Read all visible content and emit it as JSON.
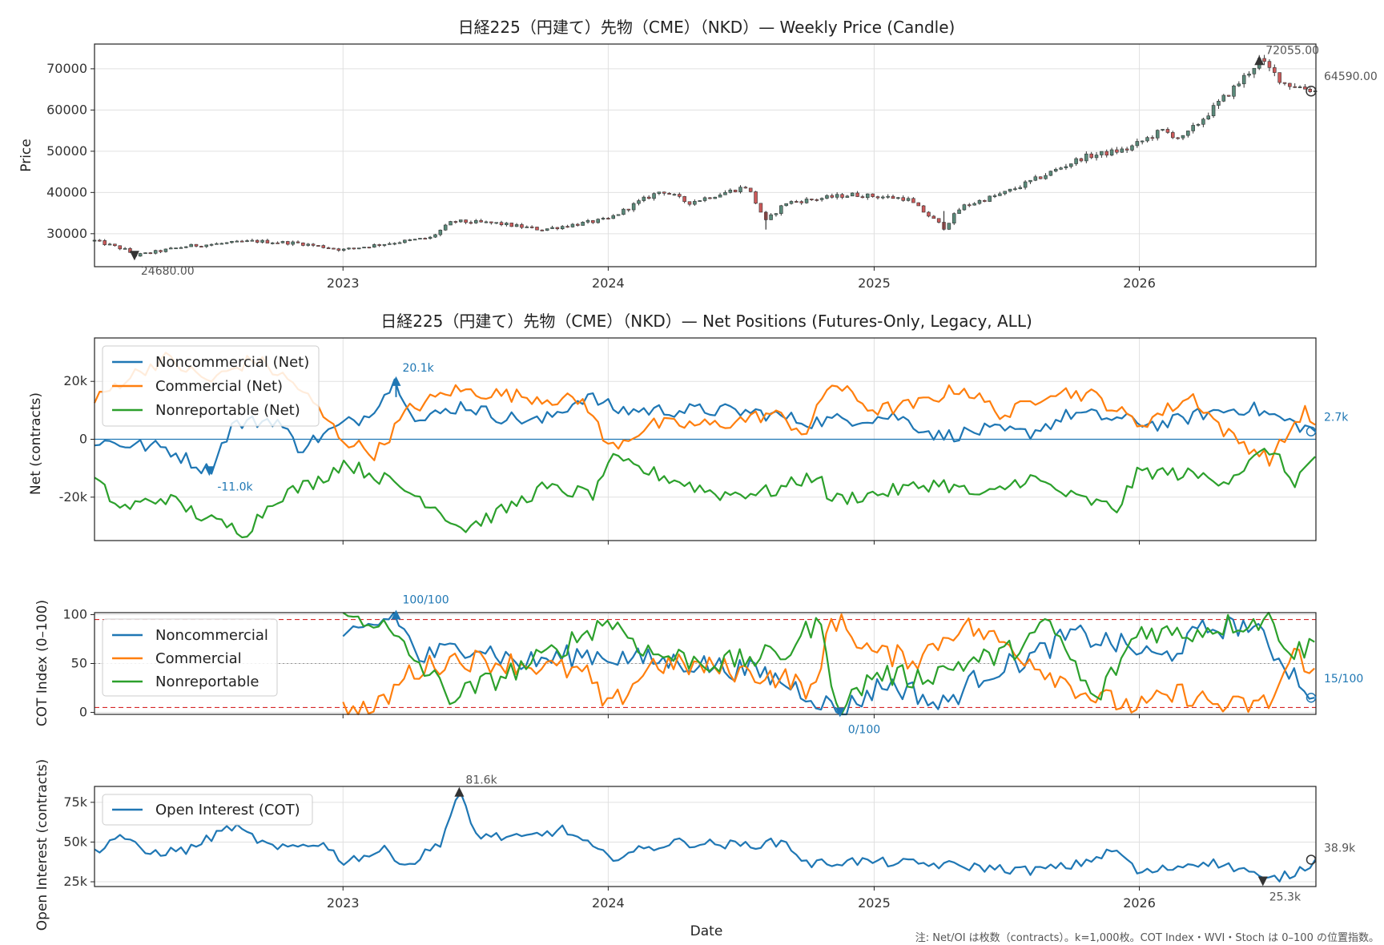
{
  "colors": {
    "noncommercial": "#1f77b4",
    "commercial": "#ff7f0e",
    "nonreportable": "#2ca02c",
    "oi": "#1f77b4",
    "up": "#5a8a7a",
    "down": "#cc5a5a",
    "threshold": "#d62728",
    "mark": "#333333"
  },
  "x_ticks": [
    "2023",
    "2024",
    "2025",
    "2026"
  ],
  "x_axis_label": "Date",
  "note": "注: Net/OI は枚数（contracts）。k=1,000枚。COT Index・WVI・Stoch は 0–100 の位置指数。",
  "chart_data": [
    {
      "type": "candlestick",
      "title": "日経225（円建て）先物（CME）（NKD）— Weekly Price (Candle)",
      "ylabel": "Price",
      "ylim": [
        22000,
        76000
      ],
      "yticks": [
        "30000",
        "40000",
        "50000",
        "60000",
        "70000"
      ],
      "x_range": [
        "2022-01-24",
        "2026-09-01"
      ],
      "anchors": [
        [
          "2022-01-24",
          28300
        ],
        [
          "2022-03-10",
          26000
        ],
        [
          "2022-03-20",
          24680
        ],
        [
          "2022-06-01",
          27000
        ],
        [
          "2022-09-01",
          28200
        ],
        [
          "2022-11-01",
          27700
        ],
        [
          "2023-01-01",
          26100
        ],
        [
          "2023-03-01",
          27600
        ],
        [
          "2023-05-01",
          29000
        ],
        [
          "2023-06-01",
          33000
        ],
        [
          "2023-08-01",
          32500
        ],
        [
          "2023-10-01",
          31000
        ],
        [
          "2024-01-01",
          33500
        ],
        [
          "2024-02-15",
          38000
        ],
        [
          "2024-03-15",
          40500
        ],
        [
          "2024-04-20",
          37500
        ],
        [
          "2024-07-10",
          41500
        ],
        [
          "2024-08-05",
          33000
        ],
        [
          "2024-09-01",
          37500
        ],
        [
          "2024-12-01",
          39500
        ],
        [
          "2025-02-15",
          38500
        ],
        [
          "2025-04-07",
          31500
        ],
        [
          "2025-05-01",
          36500
        ],
        [
          "2025-07-01",
          40000
        ],
        [
          "2025-08-15",
          43500
        ],
        [
          "2025-10-15",
          48500
        ],
        [
          "2025-12-15",
          50500
        ],
        [
          "2026-02-01",
          55000
        ],
        [
          "2026-03-01",
          53000
        ],
        [
          "2026-05-15",
          66000
        ],
        [
          "2026-06-15",
          72055
        ],
        [
          "2026-07-20",
          66500
        ],
        [
          "2026-09-01",
          64590
        ]
      ],
      "max_label": "72055.00",
      "min_label": "24680.00",
      "last_label": "64590.00"
    },
    {
      "type": "line",
      "title": "日経225（円建て）先物（CME）（NKD）— Net Positions (Futures-Only, Legacy, ALL)",
      "ylabel": "Net (contracts)",
      "ylim": [
        -35000,
        35000
      ],
      "yticks": [
        "-20k",
        "0",
        "20k"
      ],
      "series": [
        {
          "name": "Noncommercial (Net)",
          "anchors": [
            [
              "2022-01-24",
              -500
            ],
            [
              "2022-03-01",
              -1500
            ],
            [
              "2022-05-01",
              -3000
            ],
            [
              "2022-07-01",
              -11000
            ],
            [
              "2022-08-01",
              5000
            ],
            [
              "2022-10-01",
              7000
            ],
            [
              "2022-11-01",
              -3000
            ],
            [
              "2023-01-01",
              5000
            ],
            [
              "2023-02-01",
              8000
            ],
            [
              "2023-03-15",
              20100
            ],
            [
              "2023-04-15",
              6000
            ],
            [
              "2023-06-15",
              12000
            ],
            [
              "2023-08-01",
              8000
            ],
            [
              "2023-10-01",
              6000
            ],
            [
              "2023-12-01",
              15000
            ],
            [
              "2024-01-15",
              10000
            ],
            [
              "2024-04-01",
              10000
            ],
            [
              "2024-06-01",
              10000
            ],
            [
              "2024-08-01",
              9000
            ],
            [
              "2024-10-01",
              6000
            ],
            [
              "2024-12-01",
              7000
            ],
            [
              "2025-02-01",
              8000
            ],
            [
              "2025-04-01",
              1000
            ],
            [
              "2025-06-01",
              3000
            ],
            [
              "2025-08-01",
              2000
            ],
            [
              "2025-10-01",
              9000
            ],
            [
              "2025-12-01",
              7000
            ],
            [
              "2026-02-01",
              5000
            ],
            [
              "2026-04-01",
              9000
            ],
            [
              "2026-06-01",
              11000
            ],
            [
              "2026-09-01",
              2700
            ]
          ]
        },
        {
          "name": "Commercial (Net)",
          "anchors": [
            [
              "2022-01-24",
              13000
            ],
            [
              "2022-03-01",
              20000
            ],
            [
              "2022-05-01",
              28000
            ],
            [
              "2022-07-01",
              20000
            ],
            [
              "2022-09-01",
              28000
            ],
            [
              "2022-11-01",
              18000
            ],
            [
              "2023-01-01",
              0
            ],
            [
              "2023-02-15",
              -5000
            ],
            [
              "2023-04-01",
              10000
            ],
            [
              "2023-06-01",
              17000
            ],
            [
              "2023-09-01",
              15000
            ],
            [
              "2023-12-01",
              13000
            ],
            [
              "2024-01-01",
              -3000
            ],
            [
              "2024-03-01",
              5000
            ],
            [
              "2024-06-01",
              5000
            ],
            [
              "2024-08-15",
              9000
            ],
            [
              "2024-10-01",
              2000
            ],
            [
              "2024-11-01",
              20000
            ],
            [
              "2025-01-01",
              10000
            ],
            [
              "2025-03-01",
              12000
            ],
            [
              "2025-05-01",
              18000
            ],
            [
              "2025-07-01",
              8000
            ],
            [
              "2025-09-01",
              17000
            ],
            [
              "2025-11-01",
              15000
            ],
            [
              "2026-01-01",
              5000
            ],
            [
              "2026-03-15",
              15000
            ],
            [
              "2026-05-01",
              2000
            ],
            [
              "2026-07-01",
              -7000
            ],
            [
              "2026-08-15",
              10000
            ],
            [
              "2026-09-01",
              5000
            ]
          ]
        },
        {
          "name": "Nonreportable (Net)",
          "anchors": [
            [
              "2022-01-24",
              -14000
            ],
            [
              "2022-03-01",
              -24000
            ],
            [
              "2022-05-01",
              -20000
            ],
            [
              "2022-07-01",
              -28000
            ],
            [
              "2022-08-20",
              -32000
            ],
            [
              "2022-10-01",
              -20000
            ],
            [
              "2022-12-01",
              -14000
            ],
            [
              "2023-01-01",
              -8000
            ],
            [
              "2023-03-01",
              -14000
            ],
            [
              "2023-05-01",
              -22000
            ],
            [
              "2023-06-15",
              -31000
            ],
            [
              "2023-08-15",
              -24000
            ],
            [
              "2023-10-01",
              -17000
            ],
            [
              "2023-12-15",
              -19000
            ],
            [
              "2024-01-01",
              -7000
            ],
            [
              "2024-04-01",
              -14000
            ],
            [
              "2024-06-01",
              -19000
            ],
            [
              "2024-08-15",
              -18000
            ],
            [
              "2024-10-15",
              -12000
            ],
            [
              "2024-11-01",
              -21000
            ],
            [
              "2025-01-01",
              -19000
            ],
            [
              "2025-04-01",
              -15000
            ],
            [
              "2025-06-01",
              -20000
            ],
            [
              "2025-08-01",
              -13000
            ],
            [
              "2025-10-01",
              -20000
            ],
            [
              "2025-12-01",
              -24000
            ],
            [
              "2026-01-01",
              -11000
            ],
            [
              "2026-03-01",
              -12000
            ],
            [
              "2026-05-01",
              -14000
            ],
            [
              "2026-07-01",
              -3000
            ],
            [
              "2026-08-01",
              -15000
            ],
            [
              "2026-09-01",
              -6000
            ]
          ]
        }
      ],
      "max_label": "20.1k",
      "min_label": "-11.0k",
      "last_label": "2.7k"
    },
    {
      "type": "line",
      "title": "",
      "ylabel": "COT Index (0–100)",
      "ylim": [
        -2,
        102
      ],
      "yticks": [
        "0",
        "50",
        "100"
      ],
      "thresholds": [
        95,
        5
      ],
      "midline": 50,
      "series": [
        {
          "name": "Noncommercial",
          "anchors": [
            [
              "2023-01-01",
              70
            ],
            [
              "2023-02-15",
              90
            ],
            [
              "2023-03-15",
              100
            ],
            [
              "2023-04-15",
              55
            ],
            [
              "2023-07-01",
              70
            ],
            [
              "2023-09-01",
              50
            ],
            [
              "2023-12-01",
              60
            ],
            [
              "2024-02-01",
              55
            ],
            [
              "2024-05-01",
              50
            ],
            [
              "2024-08-01",
              40
            ],
            [
              "2024-10-01",
              20
            ],
            [
              "2024-11-15",
              0
            ],
            [
              "2025-01-15",
              30
            ],
            [
              "2025-03-01",
              20
            ],
            [
              "2025-04-01",
              5
            ],
            [
              "2025-06-01",
              40
            ],
            [
              "2025-08-01",
              55
            ],
            [
              "2025-10-01",
              80
            ],
            [
              "2025-12-01",
              70
            ],
            [
              "2026-02-01",
              55
            ],
            [
              "2026-04-01",
              85
            ],
            [
              "2026-06-01",
              90
            ],
            [
              "2026-08-01",
              40
            ],
            [
              "2026-09-01",
              15
            ]
          ]
        },
        {
          "name": "Commercial",
          "anchors": [
            [
              "2023-01-01",
              3
            ],
            [
              "2023-02-15",
              2
            ],
            [
              "2023-04-01",
              40
            ],
            [
              "2023-06-01",
              55
            ],
            [
              "2023-09-01",
              50
            ],
            [
              "2023-12-01",
              40
            ],
            [
              "2024-01-01",
              2
            ],
            [
              "2024-03-01",
              50
            ],
            [
              "2024-06-01",
              45
            ],
            [
              "2024-09-01",
              35
            ],
            [
              "2024-10-15",
              20
            ],
            [
              "2024-11-01",
              100
            ],
            [
              "2025-01-01",
              60
            ],
            [
              "2025-03-01",
              55
            ],
            [
              "2025-05-01",
              90
            ],
            [
              "2025-07-01",
              70
            ],
            [
              "2025-09-01",
              40
            ],
            [
              "2025-11-01",
              15
            ],
            [
              "2026-01-01",
              5
            ],
            [
              "2026-03-01",
              20
            ],
            [
              "2026-05-01",
              5
            ],
            [
              "2026-07-01",
              10
            ],
            [
              "2026-08-01",
              60
            ],
            [
              "2026-09-01",
              45
            ]
          ]
        },
        {
          "name": "Nonreportable",
          "anchors": [
            [
              "2023-01-01",
              98
            ],
            [
              "2023-02-15",
              95
            ],
            [
              "2023-04-01",
              60
            ],
            [
              "2023-06-01",
              15
            ],
            [
              "2023-08-01",
              35
            ],
            [
              "2023-10-01",
              55
            ],
            [
              "2024-01-01",
              95
            ],
            [
              "2024-03-01",
              60
            ],
            [
              "2024-06-01",
              50
            ],
            [
              "2024-09-01",
              60
            ],
            [
              "2024-10-15",
              95
            ],
            [
              "2024-11-15",
              2
            ],
            [
              "2025-01-01",
              40
            ],
            [
              "2025-03-01",
              35
            ],
            [
              "2025-05-01",
              50
            ],
            [
              "2025-07-01",
              60
            ],
            [
              "2025-09-01",
              90
            ],
            [
              "2025-11-01",
              10
            ],
            [
              "2026-01-01",
              85
            ],
            [
              "2026-03-01",
              80
            ],
            [
              "2026-05-01",
              90
            ],
            [
              "2026-07-01",
              95
            ],
            [
              "2026-08-01",
              60
            ],
            [
              "2026-09-01",
              72
            ]
          ]
        }
      ],
      "max_label": "100/100",
      "min_label": "0/100",
      "last_label": "15/100"
    },
    {
      "type": "line",
      "title": "",
      "ylabel": "Open Interest (contracts)",
      "ylim": [
        22000,
        85000
      ],
      "yticks": [
        "25k",
        "50k",
        "75k"
      ],
      "series": [
        {
          "name": "Open Interest (COT)",
          "anchors": [
            [
              "2022-01-24",
              44000
            ],
            [
              "2022-03-01",
              55000
            ],
            [
              "2022-04-01",
              43000
            ],
            [
              "2022-06-01",
              45000
            ],
            [
              "2022-08-01",
              60000
            ],
            [
              "2022-10-01",
              45000
            ],
            [
              "2022-12-01",
              50000
            ],
            [
              "2023-01-01",
              38000
            ],
            [
              "2023-03-01",
              45000
            ],
            [
              "2023-04-01",
              35000
            ],
            [
              "2023-05-15",
              50000
            ],
            [
              "2023-06-10",
              81600
            ],
            [
              "2023-07-01",
              55000
            ],
            [
              "2023-09-01",
              52000
            ],
            [
              "2023-11-01",
              58000
            ],
            [
              "2024-01-01",
              40000
            ],
            [
              "2024-04-01",
              50000
            ],
            [
              "2024-07-01",
              48000
            ],
            [
              "2024-09-01",
              50000
            ],
            [
              "2024-10-01",
              36000
            ],
            [
              "2024-12-01",
              38000
            ],
            [
              "2025-02-01",
              37000
            ],
            [
              "2025-05-01",
              35000
            ],
            [
              "2025-08-01",
              32000
            ],
            [
              "2025-10-01",
              35000
            ],
            [
              "2025-12-01",
              45000
            ],
            [
              "2026-01-01",
              30000
            ],
            [
              "2026-04-01",
              38000
            ],
            [
              "2026-06-01",
              32000
            ],
            [
              "2026-06-20",
              25300
            ],
            [
              "2026-08-01",
              30000
            ],
            [
              "2026-09-01",
              38900
            ]
          ]
        }
      ],
      "max_label": "81.6k",
      "min_label": "25.3k",
      "last_label": "38.9k"
    }
  ]
}
